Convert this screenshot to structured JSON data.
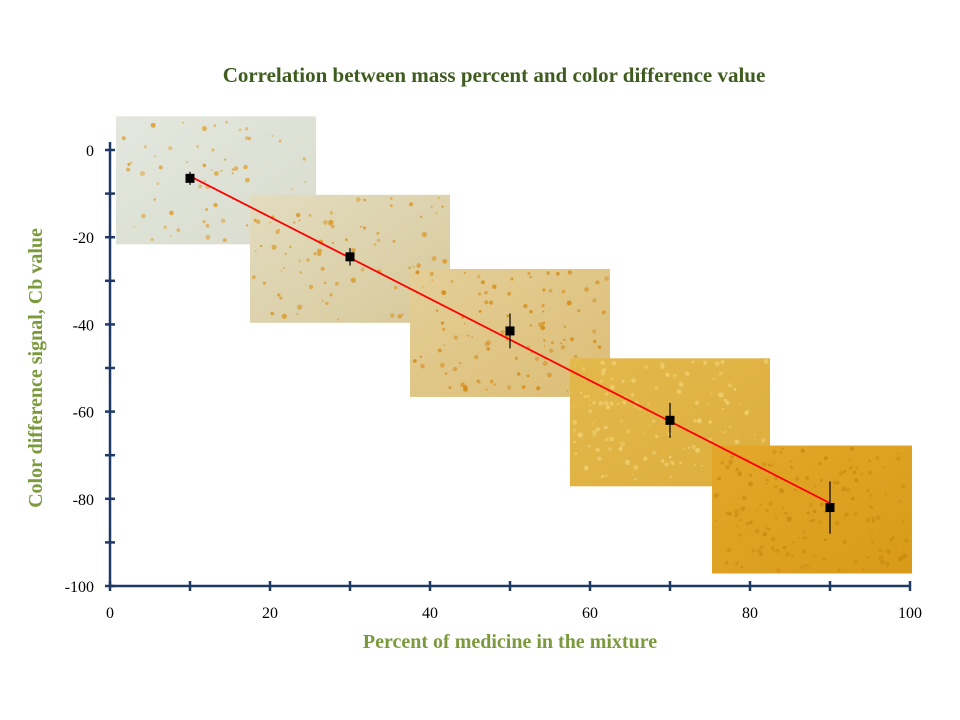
{
  "chart_data": {
    "type": "scatter",
    "title": "Correlation between mass percent and color difference value",
    "xlabel": "Percent of  medicine in the mixture",
    "ylabel": "Color difference signal, Cb value",
    "xlim": [
      0,
      100
    ],
    "ylim": [
      -100,
      0
    ],
    "x_ticks": [
      "0",
      "20",
      "40",
      "60",
      "80",
      "100"
    ],
    "y_ticks": [
      "0",
      "-20",
      "-40",
      "-60",
      "-80",
      "-100"
    ],
    "series": [
      {
        "x": [
          10,
          30,
          50,
          70,
          90
        ],
        "y": [
          -6.5,
          -24.5,
          -41.5,
          -62,
          -82
        ],
        "y_err": [
          1.5,
          2,
          4,
          4,
          6
        ],
        "marker": "square",
        "color": "#000000"
      }
    ],
    "fit_line": {
      "x": [
        10,
        90
      ],
      "y": [
        -6,
        -81
      ],
      "color": "#ff0000"
    },
    "sample_images": [
      {
        "percent": 10,
        "name": "sample-photo-10"
      },
      {
        "percent": 30,
        "name": "sample-photo-30"
      },
      {
        "percent": 50,
        "name": "sample-photo-50"
      },
      {
        "percent": 70,
        "name": "sample-photo-70"
      },
      {
        "percent": 90,
        "name": "sample-photo-90"
      }
    ],
    "grid": false,
    "colors": {
      "title": "#3f5c1f",
      "axis_label": "#7a9a3c",
      "axis": "#1f3864"
    }
  }
}
